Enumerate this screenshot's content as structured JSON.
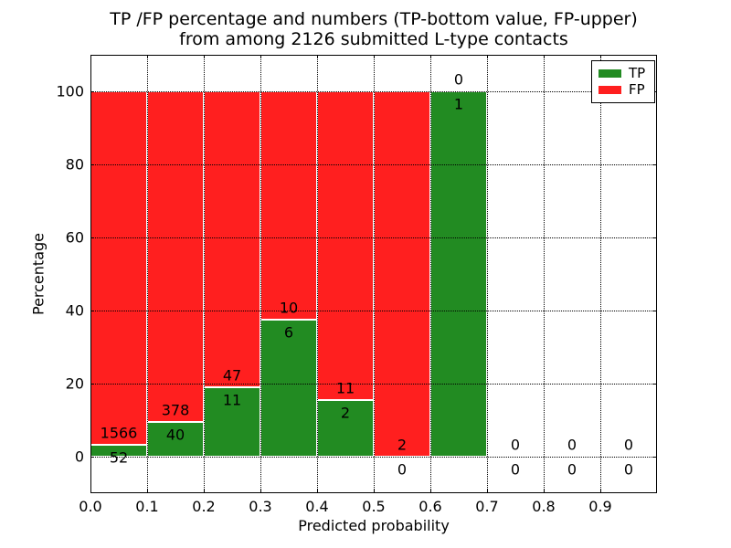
{
  "figure_title": "TP /FP percentage and numbers (TP-bottom value, FP-upper) from among 2126 submitted L-type contacts",
  "chart_data": {
    "type": "bar",
    "stacked": true,
    "title_lines": [
      "TP /FP percentage and numbers (TP-bottom value, FP-upper)",
      "from among 2126 submitted L-type contacts"
    ],
    "xlabel": "Predicted probability",
    "ylabel": "Percentage",
    "xlim": [
      0.0,
      1.0
    ],
    "ylim": [
      -10,
      110
    ],
    "xticks": [
      "0.0",
      "0.1",
      "0.2",
      "0.3",
      "0.4",
      "0.5",
      "0.6",
      "0.7",
      "0.8",
      "0.9"
    ],
    "yticks": [
      "0",
      "20",
      "40",
      "60",
      "80",
      "100"
    ],
    "grid": "dotted, drawn above bars",
    "total_contacts": 2126,
    "annotation_convention": "TP count below boundary, FP count above boundary",
    "legend": {
      "position": "upper right",
      "entries": [
        {
          "label": "TP",
          "color": "#228b22"
        },
        {
          "label": "FP",
          "color": "#ff1f1f"
        }
      ]
    },
    "bins": [
      {
        "range": [
          0.0,
          0.1
        ],
        "tp": 52,
        "fp": 1566
      },
      {
        "range": [
          0.1,
          0.2
        ],
        "tp": 40,
        "fp": 378
      },
      {
        "range": [
          0.2,
          0.3
        ],
        "tp": 11,
        "fp": 47
      },
      {
        "range": [
          0.3,
          0.4
        ],
        "tp": 6,
        "fp": 10
      },
      {
        "range": [
          0.4,
          0.5
        ],
        "tp": 2,
        "fp": 11
      },
      {
        "range": [
          0.5,
          0.6
        ],
        "tp": 0,
        "fp": 2
      },
      {
        "range": [
          0.6,
          0.7
        ],
        "tp": 1,
        "fp": 0
      },
      {
        "range": [
          0.7,
          0.8
        ],
        "tp": 0,
        "fp": 0
      },
      {
        "range": [
          0.8,
          0.9
        ],
        "tp": 0,
        "fp": 0
      },
      {
        "range": [
          0.9,
          1.0
        ],
        "tp": 0,
        "fp": 0
      }
    ]
  }
}
